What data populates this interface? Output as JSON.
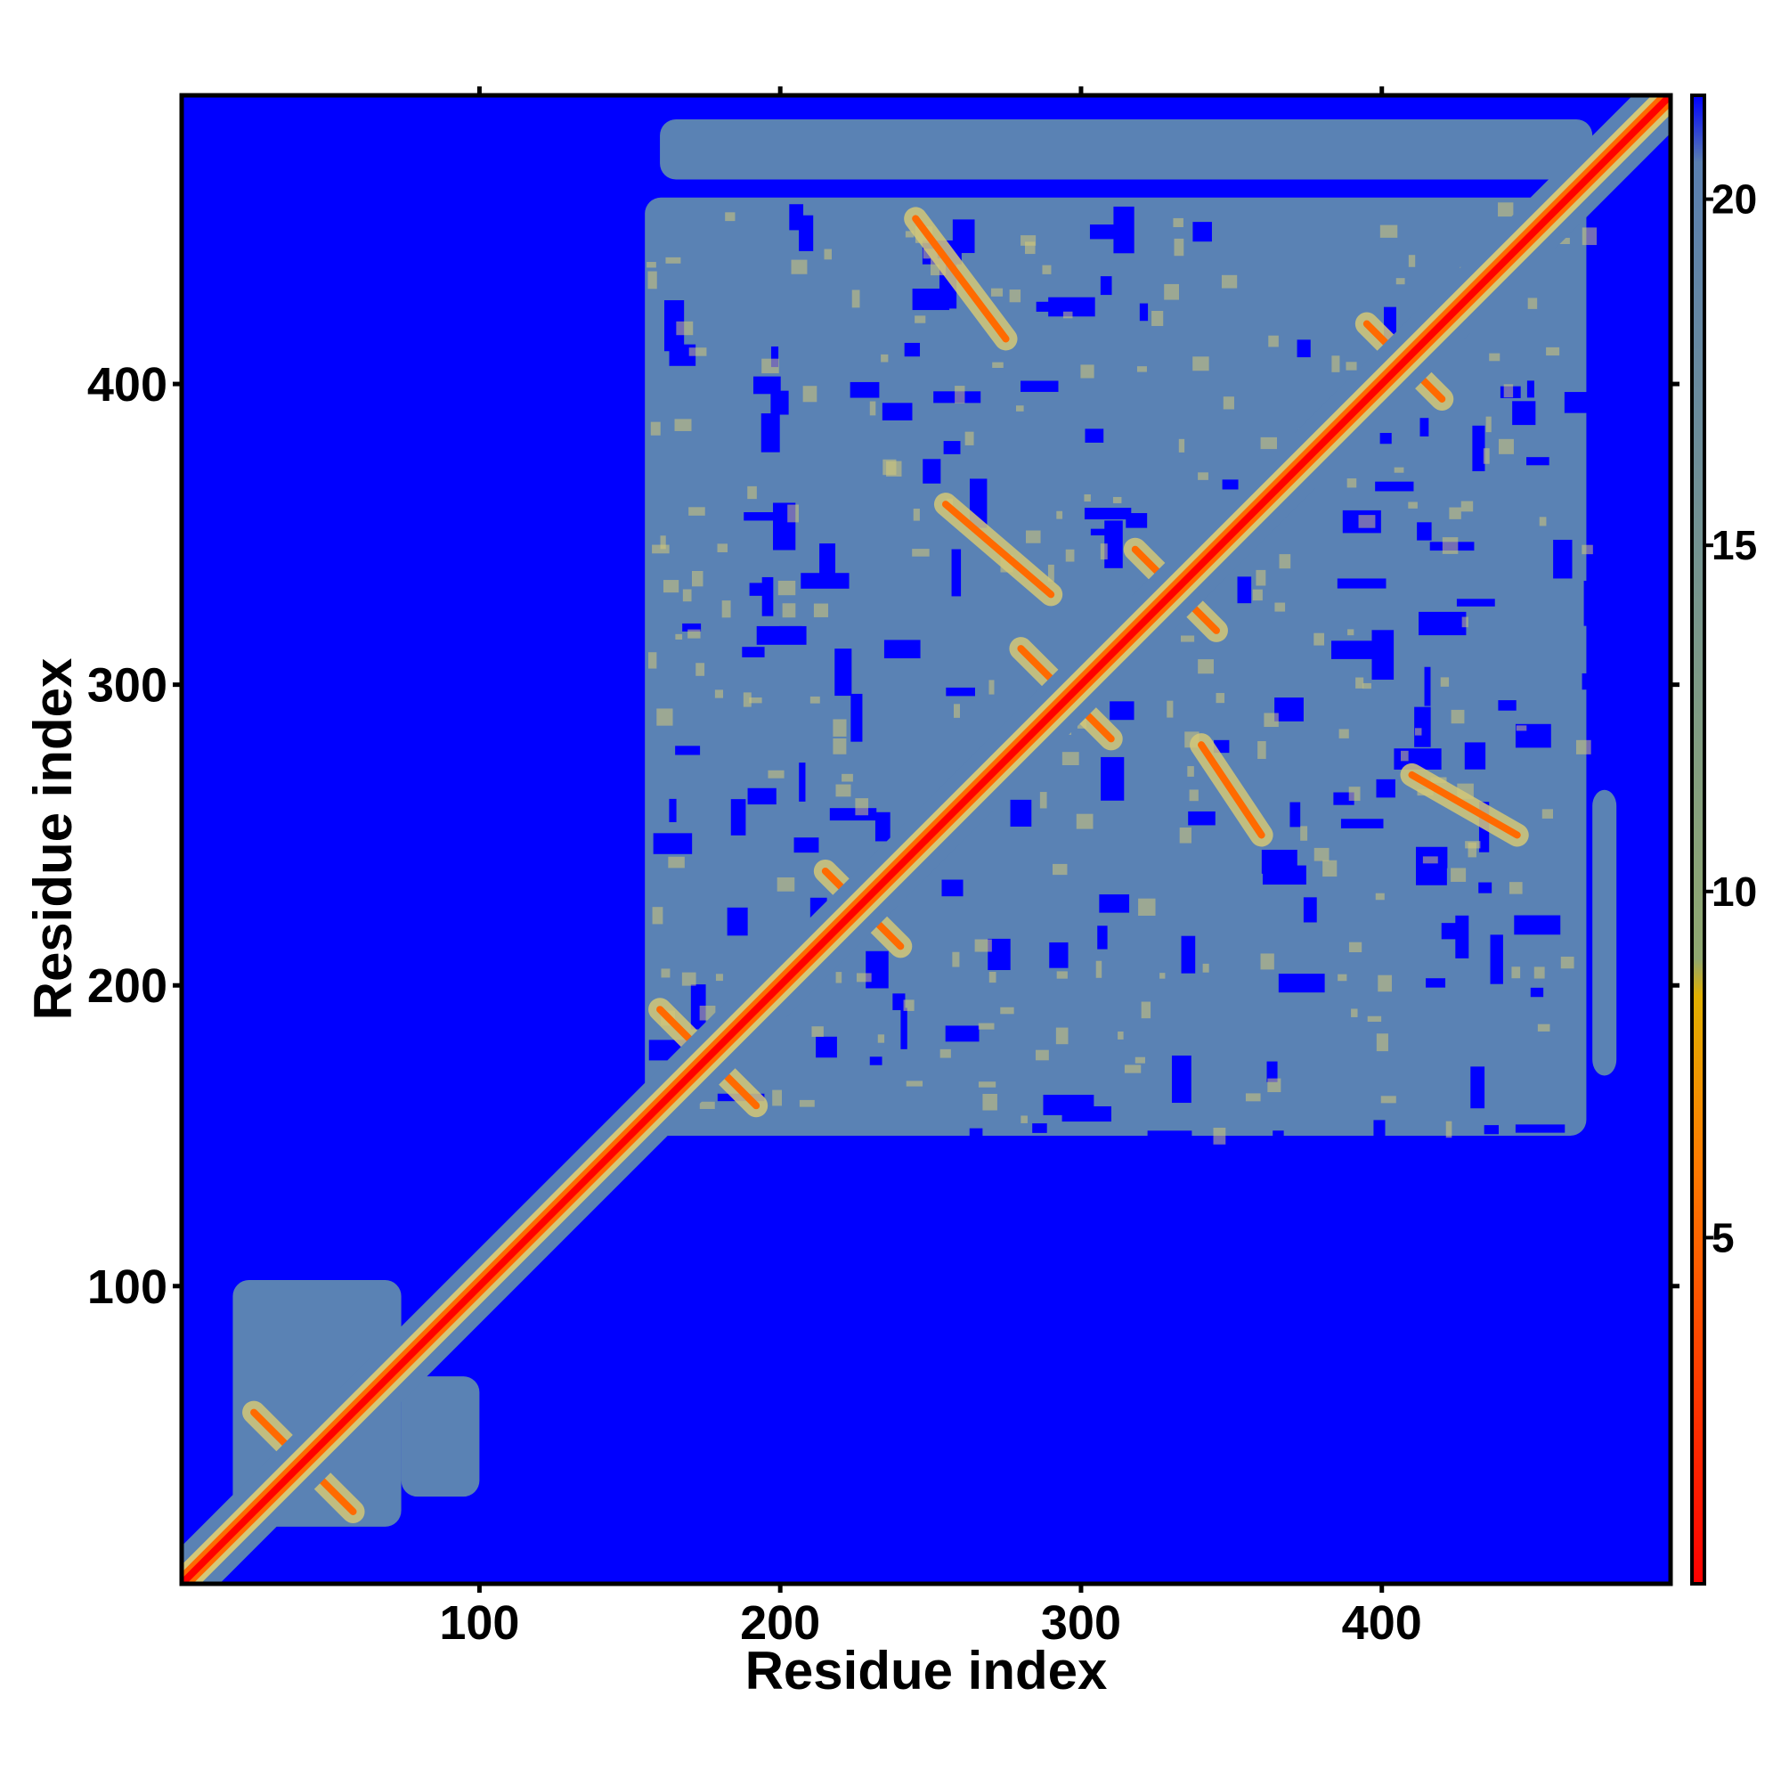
{
  "chart_data": {
    "type": "heatmap",
    "title": "",
    "xlabel": "Residue index",
    "ylabel": "Residue index",
    "xlim": [
      1,
      496
    ],
    "ylim": [
      1,
      496
    ],
    "x_ticks": [
      100,
      200,
      300,
      400
    ],
    "y_ticks": [
      100,
      200,
      300,
      400
    ],
    "colorbar": {
      "ticks": [
        5,
        10,
        15,
        20
      ],
      "range": [
        0,
        21.5
      ],
      "stops": [
        {
          "value": 0,
          "color": "#ff0000"
        },
        {
          "value": 6,
          "color": "#ff7a00"
        },
        {
          "value": 8.5,
          "color": "#e0b000"
        },
        {
          "value": 9,
          "color": "#90a870"
        },
        {
          "value": 20.5,
          "color": "#5a7fb0"
        },
        {
          "value": 21.5,
          "color": "#0000ff"
        }
      ]
    },
    "background_color": "#0000ff",
    "contact_color": "#5a82b4",
    "near_color": "#d4c878",
    "close_color": "#ff6a00",
    "diagonal_color": "#ff0000",
    "contact_blocks": [
      {
        "x": [
          155,
          468
        ],
        "y": [
          150,
          462
        ]
      },
      {
        "x": [
          160,
          470
        ],
        "y": [
          468,
          488
        ]
      },
      {
        "x": [
          18,
          74
        ],
        "y": [
          20,
          102
        ]
      },
      {
        "x": [
          74,
          100
        ],
        "y": [
          30,
          70
        ]
      },
      {
        "x": [
          470,
          478
        ],
        "y": [
          170,
          265
        ]
      }
    ],
    "contact_lines": [
      {
        "from": [
          160,
          192
        ],
        "to": [
          192,
          160
        ]
      },
      {
        "from": [
          215,
          238
        ],
        "to": [
          240,
          213
        ]
      },
      {
        "from": [
          280,
          312
        ],
        "to": [
          310,
          282
        ]
      },
      {
        "from": [
          318,
          345
        ],
        "to": [
          345,
          318
        ]
      },
      {
        "from": [
          25,
          58
        ],
        "to": [
          58,
          25
        ]
      },
      {
        "from": [
          395,
          420
        ],
        "to": [
          420,
          395
        ]
      },
      {
        "from": [
          255,
          360
        ],
        "to": [
          290,
          330
        ]
      },
      {
        "from": [
          340,
          280
        ],
        "to": [
          360,
          250
        ]
      },
      {
        "from": [
          410,
          270
        ],
        "to": [
          445,
          250
        ]
      },
      {
        "from": [
          245,
          455
        ],
        "to": [
          275,
          415
        ]
      }
    ]
  }
}
